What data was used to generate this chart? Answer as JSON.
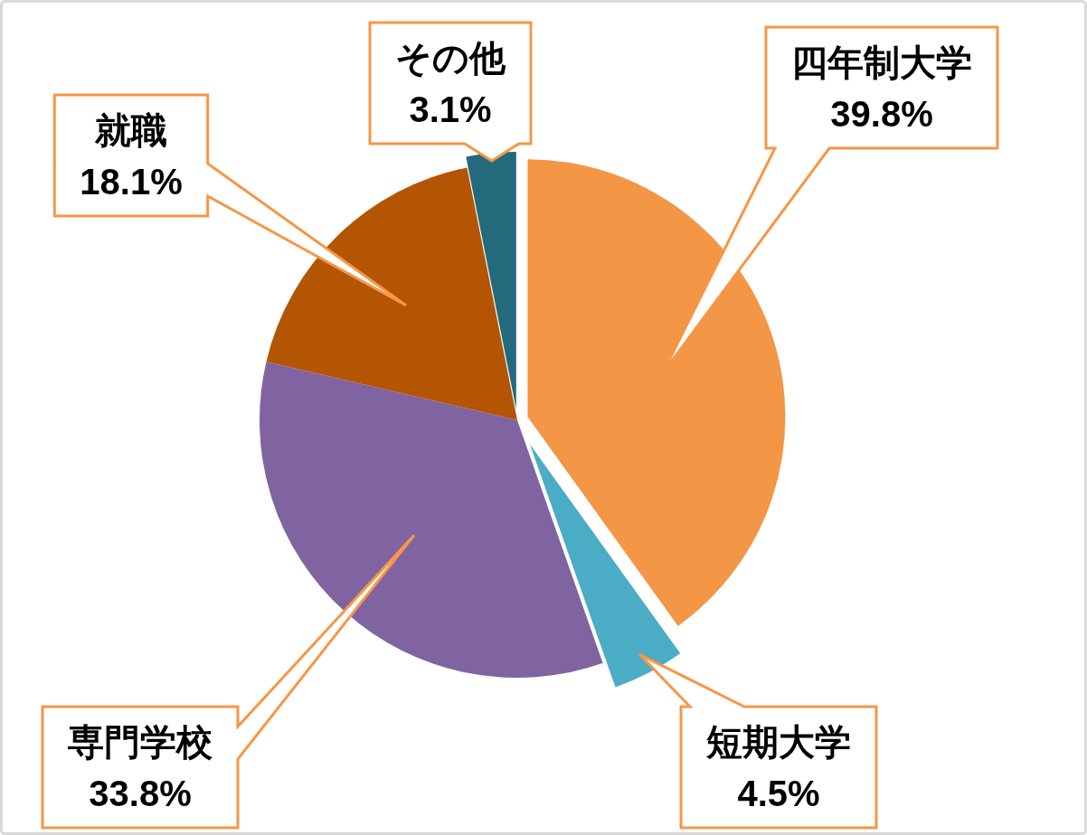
{
  "chart_data": {
    "type": "pie",
    "categories": [
      "四年制大学",
      "短期大学",
      "専門学校",
      "就職",
      "その他"
    ],
    "values": [
      39.8,
      4.5,
      33.8,
      18.1,
      3.1
    ],
    "colors": [
      "#f39646",
      "#4bacc6",
      "#8064a2",
      "#b45504",
      "#236a7c"
    ],
    "value_labels": [
      "39.8%",
      "4.5%",
      "33.8%",
      "18.1%",
      "3.1%"
    ]
  }
}
